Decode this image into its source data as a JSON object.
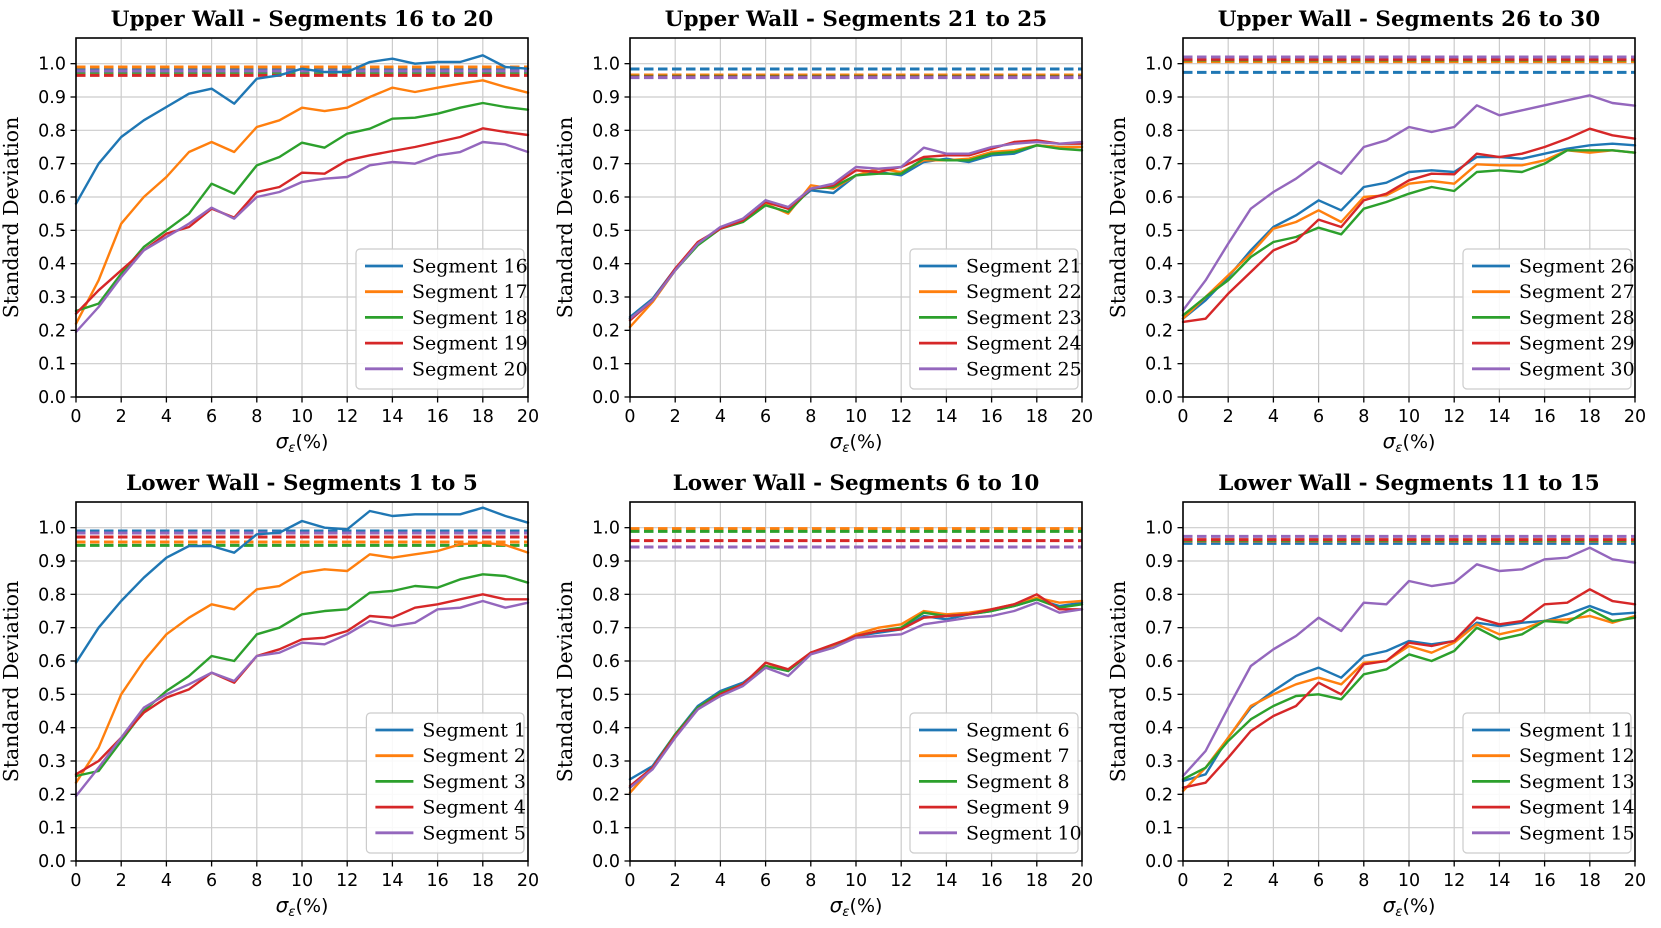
{
  "page": {
    "background": "#ffffff"
  },
  "colors": {
    "series_palette": [
      "#1f77b4",
      "#ff7f0e",
      "#2ca02c",
      "#d62728",
      "#9467bd"
    ],
    "grid": "#cccccc",
    "spine": "#000000",
    "text": "#000000",
    "legend_border": "#cccccc",
    "legend_background": "#ffffff"
  },
  "axes": {
    "x": [
      0,
      1,
      2,
      3,
      4,
      5,
      6,
      7,
      8,
      9,
      10,
      11,
      12,
      13,
      14,
      15,
      16,
      17,
      18,
      19,
      20
    ],
    "xticks": [
      0,
      2,
      4,
      6,
      8,
      10,
      12,
      14,
      16,
      18,
      20
    ],
    "ytick_labels": [
      "0.0",
      "0.1",
      "0.2",
      "0.3",
      "0.4",
      "0.5",
      "0.6",
      "0.7",
      "0.8",
      "0.9",
      "1.0"
    ],
    "xlim": [
      0,
      20
    ],
    "ylim": [
      0,
      1.077
    ],
    "xlabel_sigma": "σ",
    "xlabel_subscript": "ε",
    "xlabel_rest": "(%)",
    "ylabel": "Standard Deviation",
    "grid_on": true,
    "legend_position": "lower right"
  },
  "chart_data": [
    {
      "type": "line",
      "title": "Upper Wall - Segments 16 to 20",
      "xlabel": "σε(%)",
      "ylabel": "Standard Deviation",
      "series": [
        {
          "name": "Segment 16",
          "color": "#1f77b4",
          "dashed_y": 0.983,
          "values": [
            0.58,
            0.7,
            0.78,
            0.83,
            0.87,
            0.91,
            0.925,
            0.88,
            0.955,
            0.965,
            0.985,
            0.975,
            0.975,
            1.005,
            1.015,
            1.0,
            1.005,
            1.005,
            1.025,
            0.99,
            0.985
          ]
        },
        {
          "name": "Segment 17",
          "color": "#ff7f0e",
          "dashed_y": 0.99,
          "values": [
            0.22,
            0.35,
            0.52,
            0.6,
            0.66,
            0.735,
            0.765,
            0.735,
            0.81,
            0.83,
            0.868,
            0.858,
            0.868,
            0.9,
            0.928,
            0.915,
            0.928,
            0.94,
            0.95,
            0.93,
            0.913
          ]
        },
        {
          "name": "Segment 18",
          "color": "#2ca02c",
          "dashed_y": 0.974,
          "values": [
            0.258,
            0.28,
            0.37,
            0.45,
            0.5,
            0.55,
            0.64,
            0.61,
            0.695,
            0.72,
            0.763,
            0.748,
            0.79,
            0.805,
            0.835,
            0.838,
            0.85,
            0.868,
            0.882,
            0.87,
            0.862
          ]
        },
        {
          "name": "Segment 19",
          "color": "#d62728",
          "dashed_y": 0.965,
          "values": [
            0.25,
            0.32,
            0.38,
            0.44,
            0.49,
            0.51,
            0.565,
            0.538,
            0.615,
            0.63,
            0.673,
            0.67,
            0.71,
            0.725,
            0.738,
            0.75,
            0.765,
            0.78,
            0.806,
            0.795,
            0.786
          ]
        },
        {
          "name": "Segment 20",
          "color": "#9467bd",
          "dashed_y": 0.978,
          "values": [
            0.195,
            0.27,
            0.36,
            0.44,
            0.48,
            0.52,
            0.568,
            0.535,
            0.6,
            0.615,
            0.645,
            0.655,
            0.66,
            0.695,
            0.705,
            0.7,
            0.725,
            0.735,
            0.765,
            0.758,
            0.735
          ]
        }
      ]
    },
    {
      "type": "line",
      "title": "Upper Wall - Segments 21 to 25",
      "xlabel": "σε(%)",
      "ylabel": "Standard Deviation",
      "series": [
        {
          "name": "Segment 21",
          "color": "#1f77b4",
          "dashed_y": 0.984,
          "values": [
            0.24,
            0.295,
            0.385,
            0.46,
            0.505,
            0.535,
            0.59,
            0.565,
            0.62,
            0.612,
            0.665,
            0.675,
            0.665,
            0.705,
            0.715,
            0.705,
            0.725,
            0.73,
            0.755,
            0.75,
            0.75
          ]
        },
        {
          "name": "Segment 22",
          "color": "#ff7f0e",
          "dashed_y": 0.966,
          "values": [
            0.21,
            0.285,
            0.38,
            0.46,
            0.505,
            0.53,
            0.58,
            0.55,
            0.635,
            0.625,
            0.665,
            0.685,
            0.675,
            0.71,
            0.71,
            0.715,
            0.735,
            0.74,
            0.755,
            0.75,
            0.75
          ]
        },
        {
          "name": "Segment 23",
          "color": "#2ca02c",
          "dashed_y": 0.962,
          "values": [
            0.235,
            0.29,
            0.38,
            0.455,
            0.505,
            0.525,
            0.575,
            0.555,
            0.625,
            0.63,
            0.665,
            0.67,
            0.67,
            0.715,
            0.71,
            0.71,
            0.73,
            0.735,
            0.755,
            0.745,
            0.74
          ]
        },
        {
          "name": "Segment 24",
          "color": "#d62728",
          "dashed_y": 0.96,
          "values": [
            0.23,
            0.29,
            0.385,
            0.465,
            0.505,
            0.53,
            0.585,
            0.565,
            0.625,
            0.635,
            0.68,
            0.675,
            0.69,
            0.72,
            0.725,
            0.725,
            0.745,
            0.765,
            0.77,
            0.76,
            0.76
          ]
        },
        {
          "name": "Segment 25",
          "color": "#9467bd",
          "dashed_y": 0.958,
          "values": [
            0.235,
            0.29,
            0.38,
            0.46,
            0.51,
            0.535,
            0.59,
            0.57,
            0.625,
            0.64,
            0.69,
            0.685,
            0.69,
            0.748,
            0.73,
            0.73,
            0.75,
            0.76,
            0.765,
            0.76,
            0.765
          ]
        }
      ]
    },
    {
      "type": "line",
      "title": "Upper Wall - Segments 26 to 30",
      "xlabel": "σε(%)",
      "ylabel": "Standard Deviation",
      "series": [
        {
          "name": "Segment 26",
          "color": "#1f77b4",
          "dashed_y": 0.974,
          "values": [
            0.235,
            0.29,
            0.36,
            0.44,
            0.51,
            0.545,
            0.59,
            0.56,
            0.63,
            0.643,
            0.675,
            0.68,
            0.675,
            0.72,
            0.72,
            0.715,
            0.73,
            0.745,
            0.755,
            0.76,
            0.755
          ]
        },
        {
          "name": "Segment 27",
          "color": "#ff7f0e",
          "dashed_y": 1.006,
          "values": [
            0.235,
            0.3,
            0.365,
            0.43,
            0.505,
            0.525,
            0.56,
            0.525,
            0.6,
            0.605,
            0.64,
            0.648,
            0.64,
            0.698,
            0.695,
            0.695,
            0.71,
            0.74,
            0.733,
            0.74,
            0.733
          ]
        },
        {
          "name": "Segment 28",
          "color": "#2ca02c",
          "dashed_y": 1.011,
          "values": [
            0.245,
            0.3,
            0.35,
            0.42,
            0.465,
            0.48,
            0.508,
            0.488,
            0.565,
            0.585,
            0.61,
            0.63,
            0.618,
            0.675,
            0.68,
            0.675,
            0.7,
            0.74,
            0.74,
            0.74,
            0.733
          ]
        },
        {
          "name": "Segment 29",
          "color": "#d62728",
          "dashed_y": 1.013,
          "values": [
            0.225,
            0.235,
            0.31,
            0.375,
            0.44,
            0.468,
            0.532,
            0.51,
            0.59,
            0.61,
            0.65,
            0.67,
            0.668,
            0.73,
            0.72,
            0.73,
            0.75,
            0.775,
            0.805,
            0.785,
            0.775
          ]
        },
        {
          "name": "Segment 30",
          "color": "#9467bd",
          "dashed_y": 1.02,
          "values": [
            0.26,
            0.35,
            0.46,
            0.565,
            0.615,
            0.655,
            0.705,
            0.67,
            0.75,
            0.77,
            0.81,
            0.795,
            0.81,
            0.875,
            0.845,
            0.86,
            0.875,
            0.89,
            0.905,
            0.882,
            0.874
          ]
        }
      ]
    },
    {
      "type": "line",
      "title": "Lower Wall - Segments 1 to 5",
      "xlabel": "σε(%)",
      "ylabel": "Standard Deviation",
      "series": [
        {
          "name": "Segment 1",
          "color": "#1f77b4",
          "dashed_y": 0.99,
          "values": [
            0.595,
            0.7,
            0.78,
            0.85,
            0.91,
            0.945,
            0.945,
            0.925,
            0.98,
            0.985,
            1.02,
            1.0,
            0.995,
            1.05,
            1.035,
            1.04,
            1.04,
            1.04,
            1.06,
            1.035,
            1.015
          ]
        },
        {
          "name": "Segment 2",
          "color": "#ff7f0e",
          "dashed_y": 0.957,
          "values": [
            0.235,
            0.34,
            0.5,
            0.6,
            0.68,
            0.73,
            0.77,
            0.755,
            0.815,
            0.825,
            0.865,
            0.875,
            0.87,
            0.92,
            0.91,
            0.92,
            0.93,
            0.95,
            0.955,
            0.948,
            0.925
          ]
        },
        {
          "name": "Segment 3",
          "color": "#2ca02c",
          "dashed_y": 0.947,
          "values": [
            0.255,
            0.27,
            0.36,
            0.45,
            0.51,
            0.555,
            0.615,
            0.6,
            0.68,
            0.7,
            0.74,
            0.75,
            0.755,
            0.805,
            0.81,
            0.825,
            0.82,
            0.845,
            0.86,
            0.855,
            0.835
          ]
        },
        {
          "name": "Segment 4",
          "color": "#d62728",
          "dashed_y": 0.972,
          "values": [
            0.26,
            0.3,
            0.37,
            0.445,
            0.49,
            0.515,
            0.565,
            0.535,
            0.615,
            0.635,
            0.665,
            0.67,
            0.69,
            0.735,
            0.73,
            0.76,
            0.77,
            0.785,
            0.8,
            0.785,
            0.785
          ]
        },
        {
          "name": "Segment 5",
          "color": "#9467bd",
          "dashed_y": 0.984,
          "values": [
            0.195,
            0.28,
            0.37,
            0.46,
            0.5,
            0.53,
            0.565,
            0.54,
            0.615,
            0.625,
            0.655,
            0.65,
            0.68,
            0.72,
            0.705,
            0.715,
            0.755,
            0.76,
            0.78,
            0.76,
            0.775
          ]
        }
      ]
    },
    {
      "type": "line",
      "title": "Lower Wall - Segments 6 to 10",
      "xlabel": "σε(%)",
      "ylabel": "Standard Deviation",
      "series": [
        {
          "name": "Segment 6",
          "color": "#1f77b4",
          "dashed_y": 0.99,
          "values": [
            0.245,
            0.285,
            0.38,
            0.465,
            0.51,
            0.535,
            0.585,
            0.57,
            0.625,
            0.645,
            0.675,
            0.685,
            0.695,
            0.735,
            0.725,
            0.74,
            0.75,
            0.765,
            0.785,
            0.765,
            0.775
          ]
        },
        {
          "name": "Segment 7",
          "color": "#ff7f0e",
          "dashed_y": 0.997,
          "values": [
            0.205,
            0.28,
            0.375,
            0.46,
            0.5,
            0.53,
            0.585,
            0.575,
            0.625,
            0.645,
            0.68,
            0.7,
            0.71,
            0.75,
            0.74,
            0.745,
            0.755,
            0.77,
            0.79,
            0.775,
            0.78
          ]
        },
        {
          "name": "Segment 8",
          "color": "#2ca02c",
          "dashed_y": 0.989,
          "values": [
            0.22,
            0.28,
            0.38,
            0.46,
            0.505,
            0.53,
            0.585,
            0.57,
            0.625,
            0.64,
            0.675,
            0.69,
            0.7,
            0.745,
            0.735,
            0.74,
            0.75,
            0.765,
            0.785,
            0.76,
            0.77
          ]
        },
        {
          "name": "Segment 9",
          "color": "#d62728",
          "dashed_y": 0.961,
          "values": [
            0.225,
            0.28,
            0.375,
            0.455,
            0.5,
            0.53,
            0.595,
            0.575,
            0.625,
            0.65,
            0.675,
            0.69,
            0.695,
            0.73,
            0.735,
            0.74,
            0.755,
            0.77,
            0.8,
            0.755,
            0.755
          ]
        },
        {
          "name": "Segment 10",
          "color": "#9467bd",
          "dashed_y": 0.942,
          "values": [
            0.22,
            0.275,
            0.37,
            0.455,
            0.495,
            0.525,
            0.58,
            0.555,
            0.62,
            0.64,
            0.67,
            0.675,
            0.68,
            0.71,
            0.72,
            0.73,
            0.735,
            0.75,
            0.775,
            0.745,
            0.755
          ]
        }
      ]
    },
    {
      "type": "line",
      "title": "Lower Wall - Segments 11 to 15",
      "xlabel": "σε(%)",
      "ylabel": "Standard Deviation",
      "series": [
        {
          "name": "Segment 11",
          "color": "#1f77b4",
          "dashed_y": 0.953,
          "values": [
            0.24,
            0.26,
            0.37,
            0.46,
            0.51,
            0.555,
            0.58,
            0.55,
            0.615,
            0.63,
            0.66,
            0.65,
            0.66,
            0.715,
            0.705,
            0.715,
            0.72,
            0.74,
            0.765,
            0.74,
            0.745
          ]
        },
        {
          "name": "Segment 12",
          "color": "#ff7f0e",
          "dashed_y": 0.96,
          "values": [
            0.21,
            0.28,
            0.37,
            0.465,
            0.5,
            0.53,
            0.55,
            0.53,
            0.595,
            0.6,
            0.645,
            0.625,
            0.655,
            0.71,
            0.68,
            0.695,
            0.72,
            0.725,
            0.735,
            0.715,
            0.735
          ]
        },
        {
          "name": "Segment 13",
          "color": "#2ca02c",
          "dashed_y": 0.962,
          "values": [
            0.245,
            0.28,
            0.36,
            0.425,
            0.465,
            0.495,
            0.5,
            0.485,
            0.56,
            0.575,
            0.62,
            0.6,
            0.63,
            0.7,
            0.665,
            0.68,
            0.72,
            0.715,
            0.755,
            0.72,
            0.73
          ]
        },
        {
          "name": "Segment 14",
          "color": "#d62728",
          "dashed_y": 0.964,
          "values": [
            0.22,
            0.235,
            0.31,
            0.39,
            0.435,
            0.465,
            0.535,
            0.5,
            0.59,
            0.6,
            0.655,
            0.645,
            0.66,
            0.73,
            0.71,
            0.72,
            0.77,
            0.775,
            0.815,
            0.78,
            0.77
          ]
        },
        {
          "name": "Segment 15",
          "color": "#9467bd",
          "dashed_y": 0.974,
          "values": [
            0.255,
            0.33,
            0.46,
            0.585,
            0.635,
            0.675,
            0.73,
            0.69,
            0.775,
            0.77,
            0.84,
            0.825,
            0.835,
            0.89,
            0.87,
            0.875,
            0.905,
            0.91,
            0.94,
            0.905,
            0.895
          ]
        }
      ]
    }
  ]
}
